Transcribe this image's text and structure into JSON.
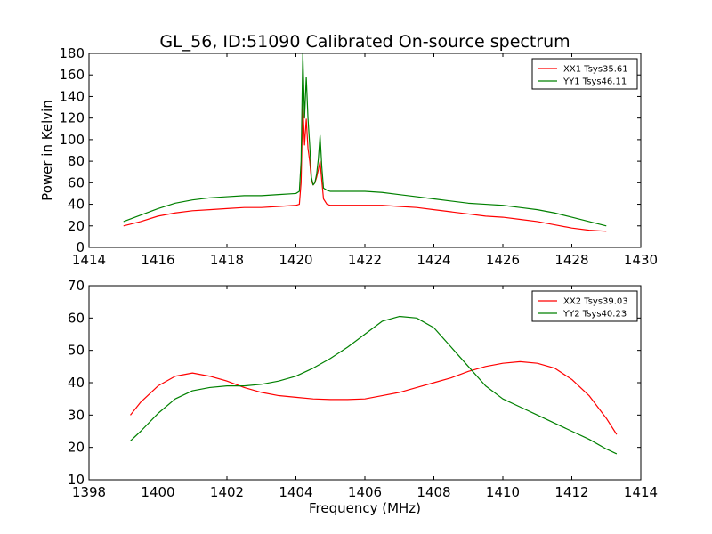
{
  "figure": {
    "title": "GL_56, ID:51090 Calibrated On-source spectrum",
    "background": "#ffffff"
  },
  "chart_data": [
    {
      "type": "line",
      "title": "GL_56, ID:51090 Calibrated On-source spectrum",
      "xlabel": "",
      "ylabel": "Power in Kelvin",
      "xlim": [
        1414,
        1430
      ],
      "ylim": [
        0,
        180
      ],
      "xticks": [
        1414,
        1416,
        1418,
        1420,
        1422,
        1424,
        1426,
        1428,
        1430
      ],
      "yticks": [
        0,
        20,
        40,
        60,
        80,
        100,
        120,
        140,
        160,
        180
      ],
      "grid": false,
      "legend": "top-right",
      "series": [
        {
          "name": "XX1 Tsys35.61",
          "color": "#ff0000",
          "x": [
            1415.0,
            1415.5,
            1416.0,
            1416.5,
            1417.0,
            1417.5,
            1418.0,
            1418.5,
            1419.0,
            1419.5,
            1420.0,
            1420.1,
            1420.15,
            1420.2,
            1420.25,
            1420.3,
            1420.35,
            1420.4,
            1420.45,
            1420.5,
            1420.55,
            1420.6,
            1420.65,
            1420.7,
            1420.75,
            1420.8,
            1420.9,
            1421.0,
            1421.5,
            1422.0,
            1422.5,
            1423.0,
            1423.5,
            1424.0,
            1424.5,
            1425.0,
            1425.5,
            1426.0,
            1426.5,
            1427.0,
            1427.5,
            1428.0,
            1428.5,
            1429.0
          ],
          "y": [
            20,
            24,
            29,
            32,
            34,
            35,
            36,
            37,
            37,
            38,
            39,
            40,
            60,
            133,
            95,
            119,
            92,
            80,
            62,
            58,
            60,
            65,
            72,
            80,
            62,
            45,
            40,
            39,
            39,
            39,
            39,
            38,
            37,
            35,
            33,
            31,
            29,
            28,
            26,
            24,
            21,
            18,
            16,
            15
          ]
        },
        {
          "name": "YY1 Tsys46.11",
          "color": "#008000",
          "x": [
            1415.0,
            1415.5,
            1416.0,
            1416.5,
            1417.0,
            1417.5,
            1418.0,
            1418.5,
            1419.0,
            1419.5,
            1420.0,
            1420.1,
            1420.15,
            1420.2,
            1420.25,
            1420.3,
            1420.35,
            1420.4,
            1420.45,
            1420.5,
            1420.55,
            1420.6,
            1420.65,
            1420.7,
            1420.75,
            1420.8,
            1420.9,
            1421.0,
            1421.5,
            1422.0,
            1422.5,
            1423.0,
            1423.5,
            1424.0,
            1424.5,
            1425.0,
            1425.5,
            1426.0,
            1426.5,
            1427.0,
            1427.5,
            1428.0,
            1428.5,
            1429.0
          ],
          "y": [
            24,
            30,
            36,
            41,
            44,
            46,
            47,
            48,
            48,
            49,
            50,
            52,
            80,
            180,
            120,
            158,
            120,
            95,
            65,
            58,
            60,
            68,
            82,
            104,
            75,
            55,
            53,
            52,
            52,
            52,
            51,
            49,
            47,
            45,
            43,
            41,
            40,
            39,
            37,
            35,
            32,
            28,
            24,
            20
          ]
        }
      ]
    },
    {
      "type": "line",
      "title": "",
      "xlabel": "Frequency (MHz)",
      "ylabel": "",
      "xlim": [
        1398,
        1414
      ],
      "ylim": [
        10,
        70
      ],
      "xticks": [
        1398,
        1400,
        1402,
        1404,
        1406,
        1408,
        1410,
        1412,
        1414
      ],
      "yticks": [
        10,
        20,
        30,
        40,
        50,
        60,
        70
      ],
      "grid": false,
      "legend": "top-right",
      "series": [
        {
          "name": "XX2 Tsys39.03",
          "color": "#ff0000",
          "x": [
            1399.2,
            1399.5,
            1400.0,
            1400.5,
            1401.0,
            1401.5,
            1402.0,
            1402.5,
            1403.0,
            1403.5,
            1404.0,
            1404.5,
            1405.0,
            1405.5,
            1406.0,
            1406.5,
            1407.0,
            1407.5,
            1408.0,
            1408.5,
            1409.0,
            1409.5,
            1410.0,
            1410.5,
            1411.0,
            1411.5,
            1412.0,
            1412.5,
            1413.0,
            1413.3
          ],
          "y": [
            30,
            34,
            39,
            42,
            43,
            42,
            40.5,
            38.5,
            37,
            36,
            35.5,
            35,
            34.8,
            34.8,
            35,
            36,
            37,
            38.5,
            40,
            41.5,
            43.5,
            45,
            46,
            46.5,
            46,
            44.5,
            41,
            36,
            29,
            24
          ]
        },
        {
          "name": "YY2 Tsys40.23",
          "color": "#008000",
          "x": [
            1399.2,
            1399.5,
            1400.0,
            1400.5,
            1401.0,
            1401.5,
            1402.0,
            1402.5,
            1403.0,
            1403.5,
            1404.0,
            1404.5,
            1405.0,
            1405.5,
            1406.0,
            1406.5,
            1407.0,
            1407.5,
            1408.0,
            1408.5,
            1409.0,
            1409.5,
            1410.0,
            1410.5,
            1411.0,
            1411.5,
            1412.0,
            1412.5,
            1413.0,
            1413.3
          ],
          "y": [
            22,
            25,
            30.5,
            35,
            37.5,
            38.5,
            39,
            39,
            39.5,
            40.5,
            42,
            44.5,
            47.5,
            51,
            55,
            59,
            60.5,
            60,
            57,
            51,
            45,
            39,
            35,
            32.5,
            30,
            27.5,
            25,
            22.5,
            19.5,
            18
          ]
        }
      ]
    }
  ]
}
